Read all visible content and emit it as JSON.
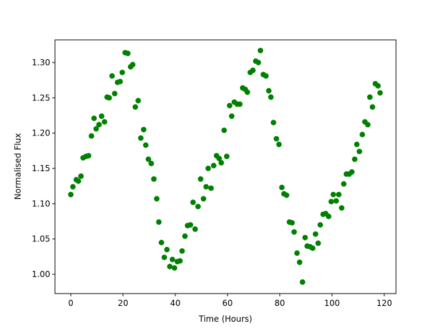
{
  "chart_data": {
    "type": "scatter",
    "xlabel": "Time (Hours)",
    "ylabel": "Normalised Flux",
    "color": "#008000",
    "grid": false,
    "xlim": [
      -6.05,
      124.5
    ],
    "ylim": [
      0.9727,
      1.3321
    ],
    "xticks": [
      0,
      20,
      40,
      60,
      80,
      100,
      120
    ],
    "yticks": [
      {
        "value": 1.0,
        "label": "1.00"
      },
      {
        "value": 1.05,
        "label": "1.05"
      },
      {
        "value": 1.1,
        "label": "1.10"
      },
      {
        "value": 1.15,
        "label": "1.15"
      },
      {
        "value": 1.2,
        "label": "1.20"
      },
      {
        "value": 1.25,
        "label": "1.25"
      },
      {
        "value": 1.3,
        "label": "1.30"
      }
    ],
    "x": [
      0,
      0.8,
      2.1,
      2.9,
      3.9,
      4.7,
      5.8,
      6.8,
      7.9,
      8.9,
      9.7,
      10.8,
      11.8,
      12.9,
      13.9,
      14.7,
      15.8,
      16.8,
      17.9,
      18.9,
      19.7,
      20.8,
      21.8,
      22.9,
      23.7,
      24.7,
      25.8,
      26.8,
      27.9,
      28.7,
      29.7,
      30.8,
      31.8,
      32.9,
      33.7,
      34.7,
      35.8,
      36.8,
      37.9,
      38.9,
      39.7,
      40.8,
      41.8,
      42.6,
      43.7,
      44.7,
      45.8,
      46.8,
      47.6,
      48.7,
      49.7,
      50.8,
      51.8,
      52.6,
      53.7,
      54.7,
      55.8,
      56.8,
      57.6,
      58.7,
      59.7,
      60.8,
      61.6,
      62.6,
      63.7,
      64.7,
      65.8,
      66.8,
      67.6,
      68.7,
      69.7,
      70.8,
      71.8,
      72.6,
      73.7,
      74.7,
      75.8,
      76.6,
      77.6,
      78.7,
      79.7,
      80.8,
      81.6,
      82.6,
      83.7,
      84.7,
      85.5,
      86.6,
      87.6,
      88.7,
      89.7,
      90.5,
      91.6,
      92.6,
      93.7,
      94.7,
      95.5,
      96.6,
      97.6,
      98.7,
      99.7,
      100.5,
      101.6,
      102.6,
      103.7,
      104.5,
      105.5,
      106.6,
      107.6,
      108.7,
      109.5,
      110.5,
      111.6,
      112.6,
      113.7,
      114.5,
      115.5,
      116.6,
      117.6,
      118.4
    ],
    "values": [
      1.113,
      1.124,
      1.134,
      1.132,
      1.139,
      1.165,
      1.167,
      1.168,
      1.196,
      1.221,
      1.206,
      1.212,
      1.224,
      1.216,
      1.251,
      1.25,
      1.281,
      1.256,
      1.272,
      1.273,
      1.286,
      1.314,
      1.313,
      1.294,
      1.297,
      1.237,
      1.246,
      1.193,
      1.205,
      1.183,
      1.163,
      1.157,
      1.135,
      1.107,
      1.074,
      1.045,
      1.024,
      1.035,
      1.011,
      1.021,
      1.009,
      1.018,
      1.019,
      1.033,
      1.054,
      1.069,
      1.07,
      1.102,
      1.064,
      1.096,
      1.135,
      1.107,
      1.124,
      1.15,
      1.122,
      1.154,
      1.168,
      1.164,
      1.158,
      1.204,
      1.167,
      1.239,
      1.224,
      1.244,
      1.241,
      1.241,
      1.264,
      1.262,
      1.258,
      1.286,
      1.289,
      1.302,
      1.3,
      1.317,
      1.283,
      1.281,
      1.26,
      1.251,
      1.215,
      1.192,
      1.184,
      1.123,
      1.114,
      1.112,
      1.074,
      1.073,
      1.06,
      1.03,
      1.017,
      0.989,
      1.052,
      1.04,
      1.039,
      1.037,
      1.057,
      1.044,
      1.07,
      1.085,
      1.086,
      1.082,
      1.103,
      1.113,
      1.104,
      1.113,
      1.094,
      1.128,
      1.142,
      1.142,
      1.145,
      1.163,
      1.184,
      1.174,
      1.198,
      1.216,
      1.212,
      1.251,
      1.237,
      1.27,
      1.267,
      1.257
    ]
  }
}
